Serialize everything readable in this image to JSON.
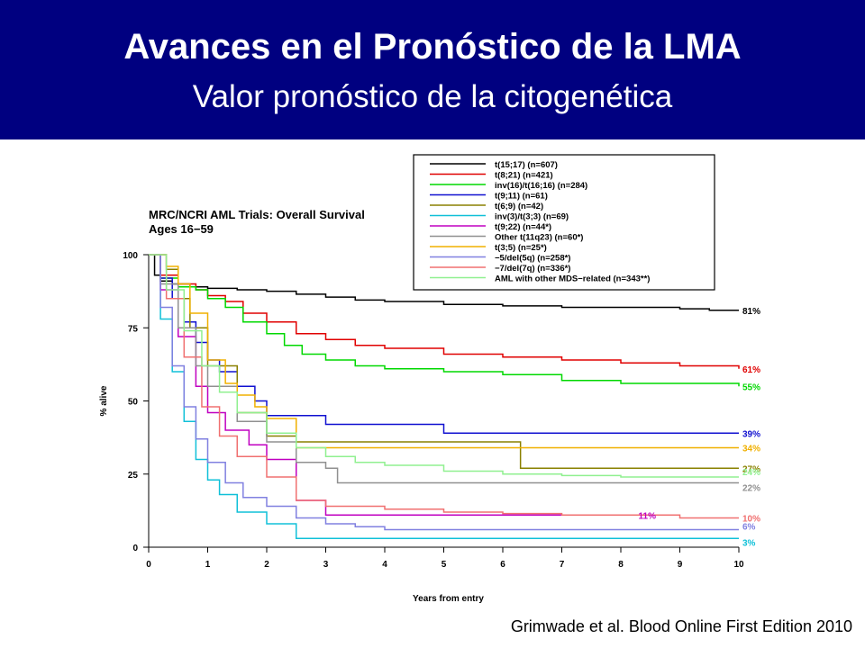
{
  "header": {
    "title": "Avances en el Pronóstico de la LMA",
    "subtitle": "Valor pronóstico de la citogenética"
  },
  "citation": "Grimwade et al. Blood Online First Edition 2010",
  "colors": {
    "header_bg": "#000080",
    "header_text": "#ffffff"
  },
  "chart_data": {
    "type": "line",
    "step": true,
    "title": "MRC/NCRI AML Trials: Overall Survival",
    "subtitle": "Ages 16−59",
    "xlabel": "Years from entry",
    "ylabel": "% alive",
    "xlim": [
      0,
      10
    ],
    "ylim": [
      0,
      100
    ],
    "xticks": [
      0,
      1,
      2,
      3,
      4,
      5,
      6,
      7,
      8,
      9,
      10
    ],
    "yticks": [
      0,
      25,
      50,
      75,
      100
    ],
    "legend_position": "top-right",
    "series": [
      {
        "name": "t(15;17) (n=607)",
        "color": "#000000",
        "end_label": "81%",
        "label_color": "#000000",
        "x": [
          0,
          0.1,
          0.2,
          0.4,
          0.7,
          1,
          1.5,
          2,
          2.5,
          3,
          3.5,
          4,
          5,
          6,
          7,
          8,
          9,
          9.5,
          10
        ],
        "y": [
          100,
          93,
          91,
          90,
          89,
          88.5,
          88,
          87.5,
          86.5,
          85.5,
          84.5,
          84,
          83,
          82.5,
          82,
          82,
          81.5,
          81,
          81
        ]
      },
      {
        "name": "t(8;21) (n=421)",
        "color": "#e00000",
        "end_label": "61%",
        "label_color": "#e00000",
        "x": [
          0,
          0.2,
          0.5,
          0.8,
          1,
          1.3,
          1.6,
          2,
          2.5,
          3,
          3.5,
          4,
          5,
          6,
          7,
          8,
          9,
          10
        ],
        "y": [
          100,
          93,
          90,
          88,
          86,
          84,
          80,
          77,
          73,
          71,
          69,
          68,
          66,
          65,
          64,
          63,
          62,
          61
        ]
      },
      {
        "name": "inv(16)/t(16;16) (n=284)",
        "color": "#00d800",
        "end_label": "55%",
        "label_color": "#00d800",
        "x": [
          0,
          0.2,
          0.5,
          0.8,
          1,
          1.3,
          1.6,
          2,
          2.3,
          2.6,
          3,
          3.5,
          4,
          5,
          6,
          7,
          8,
          9,
          10
        ],
        "y": [
          100,
          92,
          89,
          88,
          85,
          82,
          77,
          73,
          69,
          66,
          64,
          62,
          61,
          60,
          59,
          57,
          56,
          56,
          55
        ]
      },
      {
        "name": "t(9;11) (n=61)",
        "color": "#1010d0",
        "end_label": "39%",
        "label_color": "#1010d0",
        "x": [
          0,
          0.2,
          0.4,
          0.6,
          0.8,
          1,
          1.2,
          1.5,
          1.8,
          2,
          3,
          5,
          6,
          7,
          8,
          9,
          10
        ],
        "y": [
          100,
          92,
          85,
          77,
          70,
          64,
          60,
          55,
          50,
          45,
          42,
          39,
          39,
          39,
          39,
          39,
          39
        ]
      },
      {
        "name": "t(6;9) (n=42)",
        "color": "#8a8000",
        "end_label": "27%",
        "label_color": "#8a8000",
        "x": [
          0,
          0.3,
          0.5,
          0.7,
          1,
          1.5,
          2,
          2.5,
          4,
          6.2,
          6.3,
          7,
          8,
          9,
          10
        ],
        "y": [
          100,
          95,
          85,
          75,
          62,
          46,
          38,
          36,
          36,
          36,
          27,
          27,
          27,
          27,
          27
        ]
      },
      {
        "name": "inv(3)/t(3;3) (n=69)",
        "color": "#10c0d8",
        "end_label": "3%",
        "label_color": "#10c0d8",
        "x": [
          0,
          0.2,
          0.4,
          0.6,
          0.8,
          1,
          1.2,
          1.5,
          2,
          2.5,
          3,
          4,
          5,
          6,
          7,
          8,
          9,
          10
        ],
        "y": [
          100,
          78,
          60,
          43,
          30,
          23,
          18,
          12,
          8,
          3,
          3,
          3,
          3,
          3,
          3,
          3,
          3,
          3
        ]
      },
      {
        "name": "t(9;22) (n=44*)",
        "color": "#c000c0",
        "end_label": "11%",
        "label_color": "#c000c0",
        "x": [
          0,
          0.2,
          0.5,
          0.8,
          1,
          1.3,
          1.7,
          2,
          2.5,
          3,
          3.5,
          5,
          7,
          9
        ],
        "y": [
          100,
          88,
          72,
          55,
          46,
          40,
          35,
          30,
          16,
          11,
          11,
          11,
          11,
          11
        ]
      },
      {
        "name": "Other t(11q23) (n=60*)",
        "color": "#909090",
        "end_label": "22%",
        "label_color": "#909090",
        "x": [
          0,
          0.2,
          0.5,
          0.8,
          1,
          1.5,
          2,
          2.5,
          3,
          3.2,
          4,
          5,
          6,
          7,
          8,
          9,
          10
        ],
        "y": [
          100,
          90,
          75,
          62,
          55,
          43,
          36,
          29,
          27,
          22,
          22,
          22,
          22,
          22,
          22,
          22,
          22
        ]
      },
      {
        "name": "t(3;5) (n=25*)",
        "color": "#f0b000",
        "end_label": "34%",
        "label_color": "#f0b000",
        "x": [
          0,
          0.3,
          0.5,
          0.7,
          1,
          1.3,
          1.5,
          1.8,
          2,
          2.5,
          4,
          6,
          8,
          10
        ],
        "y": [
          100,
          96,
          90,
          80,
          64,
          56,
          52,
          48,
          44,
          34,
          34,
          34,
          34,
          34
        ]
      },
      {
        "name": "−5/del(5q) (n=258*)",
        "color": "#8080e0",
        "end_label": "6%",
        "label_color": "#8080e0",
        "x": [
          0,
          0.2,
          0.4,
          0.6,
          0.8,
          1,
          1.3,
          1.6,
          2,
          2.5,
          3,
          3.5,
          4,
          6,
          8,
          10
        ],
        "y": [
          100,
          82,
          62,
          48,
          37,
          29,
          22,
          17,
          14,
          10,
          8,
          7,
          6,
          6,
          6,
          6
        ]
      },
      {
        "name": "−7/del(7q) (n=336*)",
        "color": "#f07070",
        "end_label": "10%",
        "label_color": "#f07070",
        "x": [
          0,
          0.3,
          0.6,
          0.9,
          1.2,
          1.5,
          2,
          2.5,
          3,
          4,
          5,
          6,
          7,
          8,
          9,
          10
        ],
        "y": [
          100,
          85,
          65,
          48,
          38,
          31,
          24,
          16,
          14,
          13,
          12,
          11.5,
          11,
          11,
          10,
          10
        ]
      },
      {
        "name": "AML with other MDS−related (n=343**)",
        "color": "#90f090",
        "end_label": "24%",
        "label_color": "#90f090",
        "x": [
          0,
          0.3,
          0.6,
          0.9,
          1.2,
          1.5,
          2,
          2.5,
          3,
          3.5,
          4,
          5,
          6,
          7,
          8,
          9,
          10
        ],
        "y": [
          100,
          88,
          74,
          62,
          53,
          46,
          39,
          34,
          31,
          29,
          28,
          26,
          25,
          24.5,
          24,
          24,
          24
        ]
      }
    ]
  }
}
